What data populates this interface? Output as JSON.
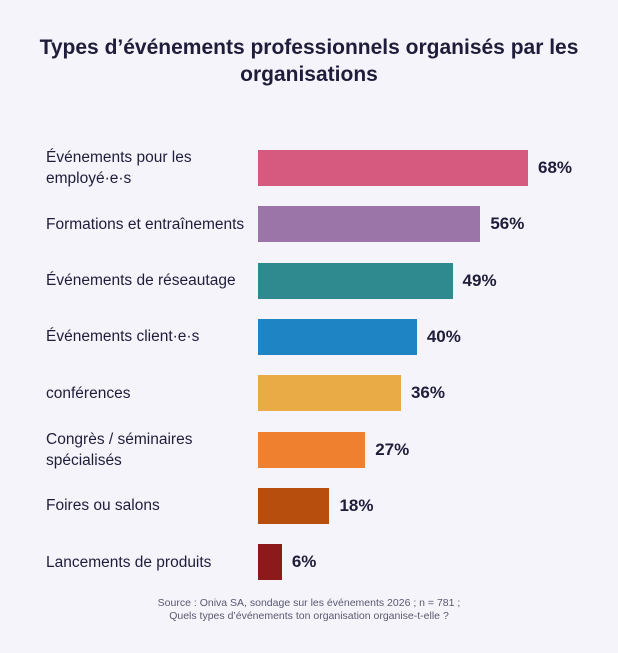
{
  "chart_data": {
    "type": "bar",
    "orientation": "horizontal",
    "title": "Types d’événements professionnels organisés par les organisations",
    "categories": [
      "Événements pour les employé·e·s",
      "Formations et entraînements",
      "Événements de réseautage",
      "Événements client·e·s",
      "conférences",
      "Congrès / séminaires spécialisés",
      "Foires ou salons",
      "Lancements de produits"
    ],
    "values": [
      68,
      56,
      49,
      40,
      36,
      27,
      18,
      6
    ],
    "value_labels": [
      "68%",
      "56%",
      "49%",
      "40%",
      "36%",
      "27%",
      "18%",
      "6%"
    ],
    "colors": [
      "#d6597f",
      "#9b74a8",
      "#2e8a8e",
      "#1f84c4",
      "#e8ab45",
      "#ef8030",
      "#b84e0e",
      "#8d1a1a"
    ],
    "unit": "%",
    "xlim": [
      0,
      100
    ],
    "grid": false,
    "legend": "none"
  },
  "source": {
    "line1": "Source : Oniva SA, sondage sur les événements 2026 ; n = 781 ;",
    "line2": "Quels types d’événements ton organisation organise-t-elle ?"
  }
}
